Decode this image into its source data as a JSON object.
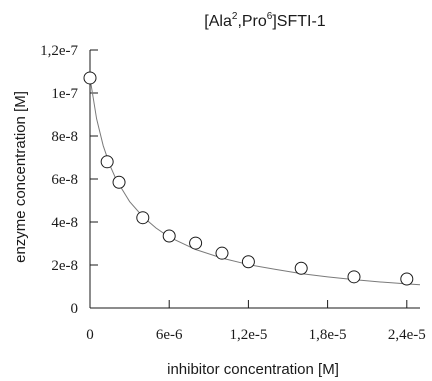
{
  "chart_data": {
    "type": "scatter",
    "title": {
      "prefix": "[Ala",
      "sup1": "2",
      "mid": ",Pro",
      "sup2": "6",
      "suffix": "]SFTI-1"
    },
    "xlabel": "inhibitor concentration [M]",
    "ylabel": "enzyme concentration [M]",
    "xlim": [
      0,
      2.5e-05
    ],
    "ylim": [
      0,
      1.2e-07
    ],
    "x_ticks": [
      {
        "value": 0,
        "label": "0"
      },
      {
        "value": 6e-06,
        "label": "6e-6"
      },
      {
        "value": 1.2e-05,
        "label": "1,2e-5"
      },
      {
        "value": 1.8e-05,
        "label": "1,8e-5"
      },
      {
        "value": 2.4e-05,
        "label": "2,4e-5"
      }
    ],
    "y_ticks": [
      {
        "value": 0,
        "label": "0"
      },
      {
        "value": 2e-08,
        "label": "2e-8"
      },
      {
        "value": 4e-08,
        "label": "4e-8"
      },
      {
        "value": 6e-08,
        "label": "6e-8"
      },
      {
        "value": 8e-08,
        "label": "8e-8"
      },
      {
        "value": 1e-07,
        "label": "1e-7"
      },
      {
        "value": 1.2e-07,
        "label": "1,2e-7"
      }
    ],
    "grid": false,
    "points": [
      {
        "x": 0,
        "y": 1.07e-07
      },
      {
        "x": 1.3e-06,
        "y": 6.8e-08
      },
      {
        "x": 2.2e-06,
        "y": 5.85e-08
      },
      {
        "x": 4e-06,
        "y": 4.2e-08
      },
      {
        "x": 6e-06,
        "y": 3.35e-08
      },
      {
        "x": 8e-06,
        "y": 3.02e-08
      },
      {
        "x": 1e-05,
        "y": 2.55e-08
      },
      {
        "x": 1.2e-05,
        "y": 2.15e-08
      },
      {
        "x": 1.6e-05,
        "y": 1.85e-08
      },
      {
        "x": 2e-05,
        "y": 1.45e-08
      },
      {
        "x": 2.4e-05,
        "y": 1.35e-08
      }
    ],
    "fit_curve": [
      {
        "x": 0,
        "y": 1.07e-07
      },
      {
        "x": 5e-07,
        "y": 8.8e-08
      },
      {
        "x": 1e-06,
        "y": 7.55e-08
      },
      {
        "x": 1.5e-06,
        "y": 6.65e-08
      },
      {
        "x": 2e-06,
        "y": 5.95e-08
      },
      {
        "x": 3e-06,
        "y": 4.95e-08
      },
      {
        "x": 4e-06,
        "y": 4.25e-08
      },
      {
        "x": 5e-06,
        "y": 3.72e-08
      },
      {
        "x": 6e-06,
        "y": 3.3e-08
      },
      {
        "x": 8e-06,
        "y": 2.72e-08
      },
      {
        "x": 1e-05,
        "y": 2.32e-08
      },
      {
        "x": 1.2e-05,
        "y": 2.02e-08
      },
      {
        "x": 1.4e-05,
        "y": 1.8e-08
      },
      {
        "x": 1.6e-05,
        "y": 1.6e-08
      },
      {
        "x": 1.8e-05,
        "y": 1.45e-08
      },
      {
        "x": 2e-05,
        "y": 1.32e-08
      },
      {
        "x": 2.2e-05,
        "y": 1.21e-08
      },
      {
        "x": 2.4e-05,
        "y": 1.12e-08
      },
      {
        "x": 2.5e-05,
        "y": 1.08e-08
      }
    ],
    "colors": {
      "axis": "#1a1a1a",
      "marker_stroke": "#1a1a1a",
      "marker_fill": "#ffffff",
      "curve": "#7a7a7a"
    }
  }
}
